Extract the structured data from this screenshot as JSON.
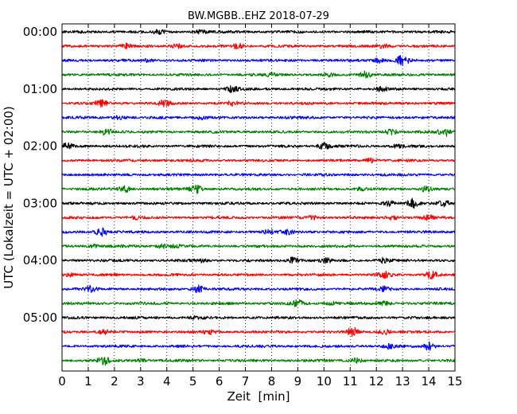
{
  "chart_data": {
    "type": "line",
    "title": "BW.MGBB..EHZ 2018-07-29",
    "xlabel": "Zeit  [min]",
    "ylabel": "UTC (Lokalzeit = UTC + 02:00)",
    "xlim": [
      0,
      15
    ],
    "x_ticks": [
      "0",
      "1",
      "2",
      "3",
      "4",
      "5",
      "6",
      "7",
      "8",
      "9",
      "10",
      "11",
      "12",
      "13",
      "14",
      "15"
    ],
    "y_ticks": [
      {
        "label": "00:00",
        "row": 0
      },
      {
        "label": "01:00",
        "row": 4
      },
      {
        "label": "02:00",
        "row": 8
      },
      {
        "label": "03:00",
        "row": 12
      },
      {
        "label": "04:00",
        "row": 16
      },
      {
        "label": "05:00",
        "row": 20
      }
    ],
    "grid": "vertical dotted",
    "trace_interval_min": 15,
    "colors": [
      "#000000",
      "#ff0000",
      "#0000ff",
      "#008000"
    ],
    "series": [
      {
        "start": "00:00",
        "color": "#000000",
        "bursts": [
          [
            3.7,
            0.4
          ],
          [
            5.3,
            0.3
          ]
        ]
      },
      {
        "start": "00:15",
        "color": "#ff0000",
        "bursts": [
          [
            2.4,
            0.5
          ],
          [
            4.4,
            0.4
          ],
          [
            6.7,
            0.6
          ],
          [
            12.3,
            0.5
          ]
        ]
      },
      {
        "start": "00:30",
        "color": "#0000ff",
        "bursts": [
          [
            3.3,
            0.3
          ],
          [
            12.1,
            0.4
          ],
          [
            13.0,
            1.0
          ]
        ]
      },
      {
        "start": "00:45",
        "color": "#008000",
        "bursts": [
          [
            8.0,
            0.3
          ],
          [
            10.2,
            0.3
          ],
          [
            11.6,
            0.7
          ]
        ]
      },
      {
        "start": "01:00",
        "color": "#000000",
        "bursts": [
          [
            6.5,
            0.6
          ],
          [
            12.2,
            0.4
          ]
        ]
      },
      {
        "start": "01:15",
        "color": "#ff0000",
        "bursts": [
          [
            1.5,
            0.7
          ],
          [
            3.9,
            0.6
          ],
          [
            6.5,
            0.4
          ]
        ]
      },
      {
        "start": "01:30",
        "color": "#0000ff",
        "bursts": [
          [
            2.2,
            0.4
          ],
          [
            5.3,
            0.3
          ]
        ]
      },
      {
        "start": "01:45",
        "color": "#008000",
        "bursts": [
          [
            1.7,
            0.7
          ],
          [
            12.6,
            0.6
          ],
          [
            14.6,
            0.9
          ]
        ]
      },
      {
        "start": "02:00",
        "color": "#000000",
        "bursts": [
          [
            0.2,
            0.5
          ],
          [
            10.0,
            0.7
          ],
          [
            12.8,
            0.3
          ]
        ]
      },
      {
        "start": "02:15",
        "color": "#ff0000",
        "bursts": [
          [
            11.8,
            0.5
          ]
        ]
      },
      {
        "start": "02:30",
        "color": "#0000ff",
        "bursts": []
      },
      {
        "start": "02:45",
        "color": "#008000",
        "bursts": [
          [
            2.4,
            0.6
          ],
          [
            5.1,
            0.9
          ],
          [
            11.4,
            0.3
          ],
          [
            13.9,
            0.5
          ]
        ]
      },
      {
        "start": "03:00",
        "color": "#000000",
        "bursts": [
          [
            12.5,
            0.5
          ],
          [
            13.4,
            1.0
          ],
          [
            14.6,
            0.5
          ]
        ]
      },
      {
        "start": "03:15",
        "color": "#ff0000",
        "bursts": [
          [
            2.8,
            0.3
          ],
          [
            9.6,
            0.4
          ],
          [
            12.6,
            0.4
          ],
          [
            14.0,
            0.4
          ]
        ]
      },
      {
        "start": "03:30",
        "color": "#0000ff",
        "bursts": [
          [
            1.5,
            0.9
          ],
          [
            7.9,
            0.4
          ],
          [
            8.6,
            0.5
          ]
        ]
      },
      {
        "start": "03:45",
        "color": "#008000",
        "bursts": [
          [
            1.2,
            0.3
          ],
          [
            3.8,
            0.4
          ],
          [
            4.3,
            0.3
          ]
        ]
      },
      {
        "start": "04:00",
        "color": "#000000",
        "bursts": [
          [
            5.3,
            0.3
          ],
          [
            8.8,
            0.6
          ],
          [
            10.1,
            0.4
          ],
          [
            12.3,
            0.5
          ]
        ]
      },
      {
        "start": "04:15",
        "color": "#ff0000",
        "bursts": [
          [
            0.3,
            0.3
          ],
          [
            12.3,
            0.6
          ],
          [
            14.1,
            0.8
          ]
        ]
      },
      {
        "start": "04:30",
        "color": "#0000ff",
        "bursts": [
          [
            1.1,
            0.6
          ],
          [
            5.2,
            0.8
          ],
          [
            12.3,
            0.5
          ]
        ]
      },
      {
        "start": "04:45",
        "color": "#008000",
        "bursts": [
          [
            9.0,
            0.6
          ],
          [
            10.3,
            0.3
          ],
          [
            12.3,
            0.4
          ]
        ]
      },
      {
        "start": "05:00",
        "color": "#000000",
        "bursts": [
          [
            5.2,
            0.3
          ]
        ]
      },
      {
        "start": "05:15",
        "color": "#ff0000",
        "bursts": [
          [
            1.6,
            0.4
          ],
          [
            5.6,
            0.4
          ],
          [
            11.1,
            0.9
          ],
          [
            12.3,
            0.5
          ]
        ]
      },
      {
        "start": "05:30",
        "color": "#0000ff",
        "bursts": [
          [
            12.5,
            0.5
          ],
          [
            14.0,
            0.8
          ]
        ]
      },
      {
        "start": "05:45",
        "color": "#008000",
        "bursts": [
          [
            1.6,
            0.8
          ],
          [
            3.0,
            0.3
          ],
          [
            11.2,
            0.5
          ]
        ]
      }
    ]
  }
}
